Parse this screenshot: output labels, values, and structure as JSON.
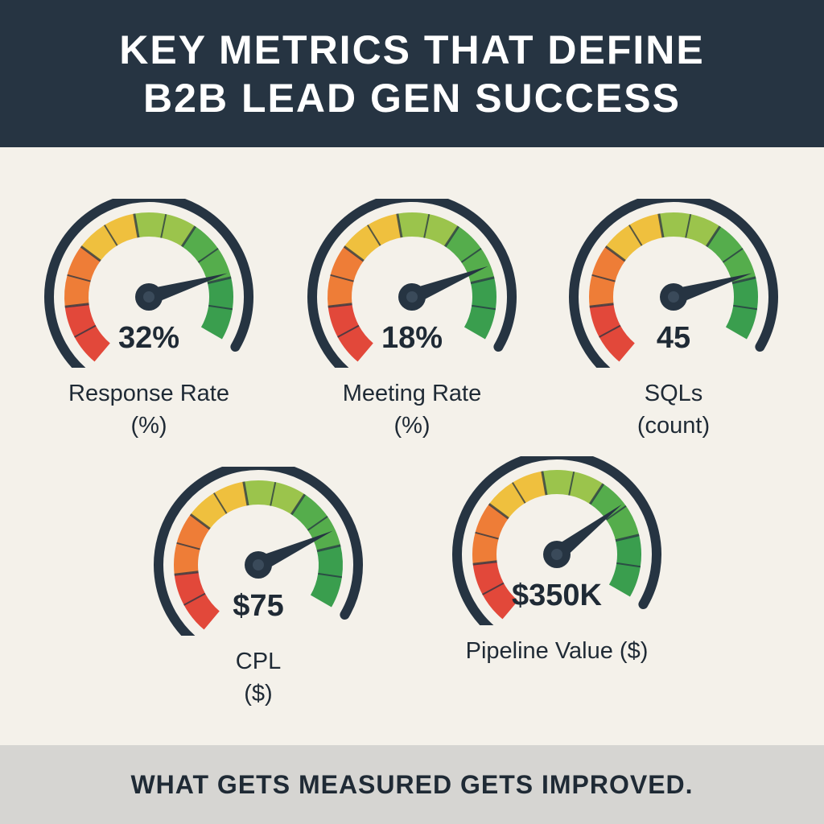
{
  "header": {
    "title_line1": "KEY METRICS THAT DEFINE",
    "title_line2": "B2B LEAD GEN SUCCESS"
  },
  "gauges": [
    {
      "value": "32%",
      "label_line1": "Response Rate",
      "label_line2": "(%)",
      "needle_level": 0.82
    },
    {
      "value": "18%",
      "label_line1": "Meeting Rate",
      "label_line2": "(%)",
      "needle_level": 0.8
    },
    {
      "value": "45",
      "label_line1": "SQLs",
      "label_line2": "(count)",
      "needle_level": 0.82
    },
    {
      "value": "$75",
      "label_line1": "CPL",
      "label_line2": "($)",
      "needle_level": 0.79
    },
    {
      "value": "$350K",
      "label_line1": "Pipeline Value ($)",
      "label_line2": "",
      "needle_level": 0.74
    }
  ],
  "colors": {
    "header_bg": "#263442",
    "page_bg": "#f4f1ea",
    "footer_bg": "#d6d5d2",
    "gauge_outline": "#263442",
    "zone_red": "#e2483a",
    "zone_orange": "#ee7d37",
    "zone_yellow": "#efc03e",
    "zone_lightgreen": "#9bc44c",
    "zone_green": "#55ad4c",
    "zone_darkgreen": "#3a9e4e"
  },
  "footer": {
    "tagline": "WHAT GETS MEASURED GETS IMPROVED."
  }
}
